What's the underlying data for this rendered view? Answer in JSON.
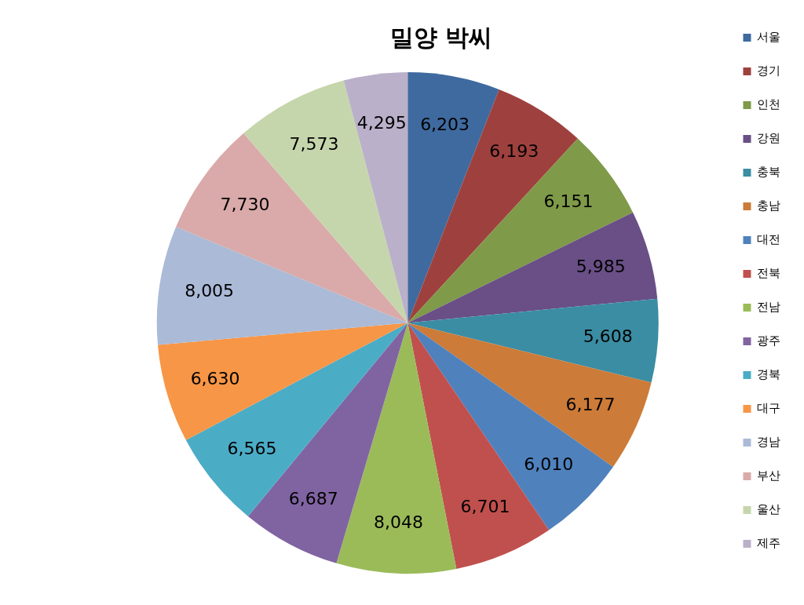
{
  "chart_data": {
    "type": "pie",
    "title": "밀양 박씨",
    "categories": [
      "서울",
      "경기",
      "인천",
      "강원",
      "충북",
      "충남",
      "대전",
      "전북",
      "전남",
      "광주",
      "경북",
      "대구",
      "경남",
      "부산",
      "울산",
      "제주"
    ],
    "values": [
      6203,
      6193,
      6151,
      5985,
      5608,
      6177,
      6010,
      6701,
      8048,
      6687,
      6565,
      6630,
      8005,
      7730,
      7573,
      4295
    ],
    "colors": [
      "#3f6a9f",
      "#9e413e",
      "#7f9a48",
      "#694f86",
      "#3a8da3",
      "#cc7b38",
      "#4f81bd",
      "#c0504d",
      "#9bbb59",
      "#8064a2",
      "#4bacc6",
      "#f79646",
      "#aabad7",
      "#d9aaa9",
      "#c6d6ac",
      "#bab0c9"
    ],
    "value_labels": [
      "6,203",
      "6,193",
      "6,151",
      "5,985",
      "5,608",
      "6,177",
      "6,010",
      "6,701",
      "8,048",
      "6,687",
      "6,565",
      "6,630",
      "8,005",
      "7,730",
      "7,573",
      "4,295"
    ],
    "legend": "right"
  }
}
